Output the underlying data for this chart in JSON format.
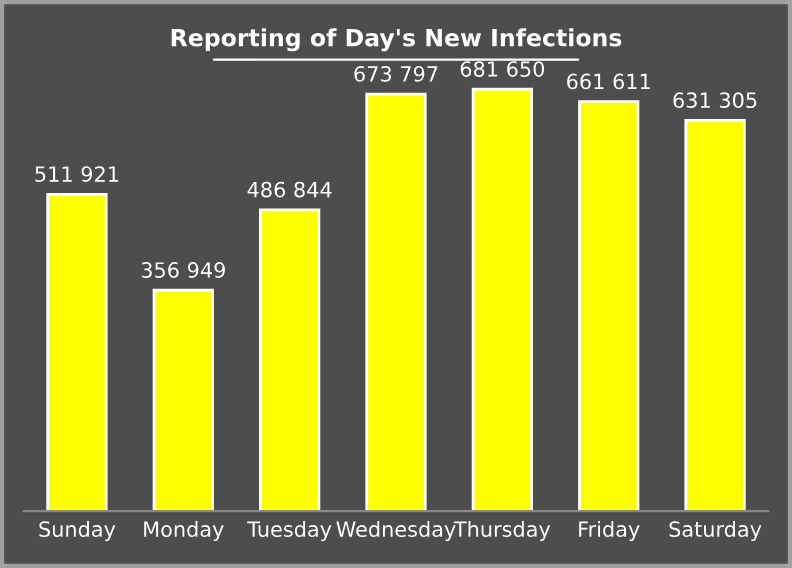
{
  "chart_data": {
    "type": "bar",
    "title": "Reporting of Day's New Infections",
    "categories": [
      "Sunday",
      "Monday",
      "Tuesday",
      "Wednesday",
      "Thursday",
      "Friday",
      "Saturday"
    ],
    "values": [
      511921,
      356949,
      486844,
      673797,
      681650,
      661611,
      631305
    ],
    "value_labels": [
      "511 921",
      "356 949",
      "486 844",
      "673 797",
      "681 650",
      "661 611",
      "631 305"
    ],
    "color": "#ffff00",
    "grid": false,
    "legend": false
  }
}
